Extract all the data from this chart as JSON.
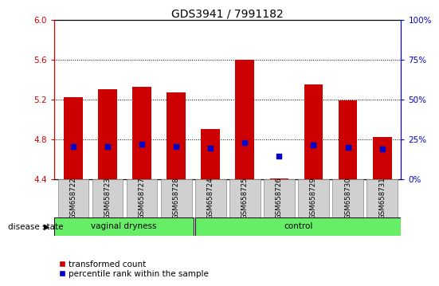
{
  "title": "GDS3941 / 7991182",
  "samples": [
    "GSM658722",
    "GSM658723",
    "GSM658727",
    "GSM658728",
    "GSM658724",
    "GSM658725",
    "GSM658726",
    "GSM658729",
    "GSM658730",
    "GSM658731"
  ],
  "groups": [
    "vaginal dryness",
    "vaginal dryness",
    "vaginal dryness",
    "vaginal dryness",
    "control",
    "control",
    "control",
    "control",
    "control",
    "control"
  ],
  "red_bottom": [
    4.4,
    4.4,
    4.4,
    4.4,
    4.4,
    4.4,
    4.4,
    4.4,
    4.4,
    4.4
  ],
  "red_top": [
    5.22,
    5.3,
    5.33,
    5.27,
    4.9,
    5.6,
    4.41,
    5.35,
    5.19,
    4.82
  ],
  "blue_y": [
    4.73,
    4.73,
    4.75,
    4.73,
    4.71,
    4.77,
    4.63,
    4.74,
    4.72,
    4.7
  ],
  "ylim_left": [
    4.4,
    6.0
  ],
  "ylim_right": [
    0,
    100
  ],
  "yticks_left": [
    4.4,
    4.8,
    5.2,
    5.6,
    6.0
  ],
  "yticks_right": [
    0,
    25,
    50,
    75,
    100
  ],
  "bar_color": "#cc0000",
  "blue_color": "#0000cc",
  "bg_color": "#ffffff",
  "tick_color_left": "#cc0000",
  "tick_color_right": "#0000cc",
  "sample_bg": "#d0d0d0",
  "group_stripe_color": "#66ee66",
  "vaginal_label": "vaginal dryness",
  "control_label": "control",
  "disease_state_label": "disease state",
  "legend_red_label": "transformed count",
  "legend_blue_label": "percentile rank within the sample",
  "vaginal_count": 4,
  "total_samples": 10
}
